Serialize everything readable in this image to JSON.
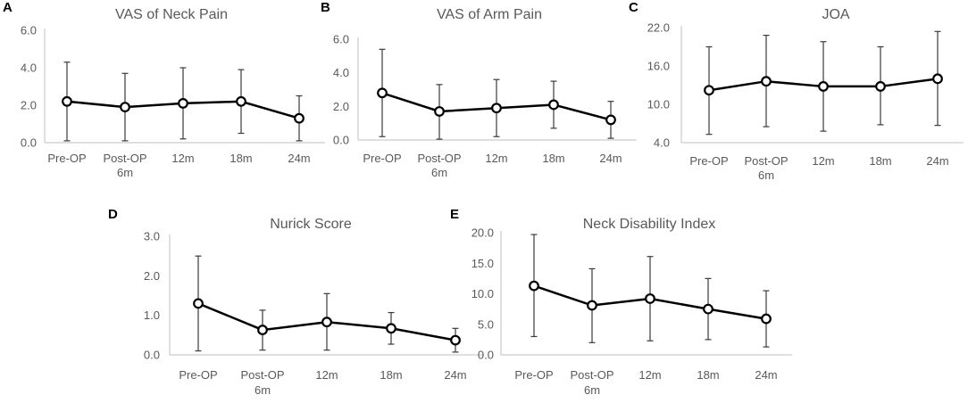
{
  "chart_data": [
    {
      "panel": "A",
      "type": "line",
      "title": "VAS of Neck Pain",
      "categories": [
        "Pre-OP",
        "Post-OP\n6m",
        "12m",
        "18m",
        "24m"
      ],
      "values": [
        2.2,
        1.9,
        2.1,
        2.2,
        1.3
      ],
      "error_low": [
        0.1,
        0.1,
        0.2,
        0.5,
        0.1
      ],
      "error_high": [
        4.3,
        3.7,
        4.0,
        3.9,
        2.5
      ],
      "ylim": [
        0,
        6
      ],
      "yticks": [
        "0.0",
        "2.0",
        "4.0",
        "6.0"
      ],
      "xlabel": "",
      "ylabel": "",
      "grid": false
    },
    {
      "panel": "B",
      "type": "line",
      "title": "VAS of Arm Pain",
      "categories": [
        "Pre-OP",
        "Post-OP\n6m",
        "12m",
        "18m",
        "24m"
      ],
      "values": [
        2.8,
        1.7,
        1.9,
        2.1,
        1.2
      ],
      "error_low": [
        0.2,
        0.05,
        0.2,
        0.7,
        0.1
      ],
      "error_high": [
        5.4,
        3.3,
        3.6,
        3.5,
        2.3
      ],
      "ylim": [
        0,
        6
      ],
      "yticks": [
        "0.0",
        "2.0",
        "4.0",
        "6.0"
      ],
      "xlabel": "",
      "ylabel": "",
      "grid": false
    },
    {
      "panel": "C",
      "type": "line",
      "title": "JOA",
      "categories": [
        "Pre-OP",
        "Post-OP\n6m",
        "12m",
        "18m",
        "24m"
      ],
      "values": [
        12.2,
        13.6,
        12.8,
        12.8,
        14.0
      ],
      "error_low": [
        5.3,
        6.5,
        5.8,
        6.8,
        6.7
      ],
      "error_high": [
        19.0,
        20.8,
        19.8,
        19.0,
        21.4
      ],
      "ylim": [
        4,
        22
      ],
      "yticks": [
        "4.0",
        "10.0",
        "16.0",
        "22.0"
      ],
      "xlabel": "",
      "ylabel": "",
      "grid": false
    },
    {
      "panel": "D",
      "type": "line",
      "title": "Nurick Score",
      "categories": [
        "Pre-OP",
        "Post-OP\n6m",
        "12m",
        "18m",
        "24m"
      ],
      "values": [
        1.3,
        0.63,
        0.83,
        0.67,
        0.37
      ],
      "error_low": [
        0.1,
        0.12,
        0.12,
        0.27,
        0.07
      ],
      "error_high": [
        2.5,
        1.13,
        1.55,
        1.07,
        0.67
      ],
      "ylim": [
        0,
        3
      ],
      "yticks": [
        "0.0",
        "1.0",
        "2.0",
        "3.0"
      ],
      "xlabel": "",
      "ylabel": "",
      "grid": false
    },
    {
      "panel": "E",
      "type": "line",
      "title": "Neck Disability Index",
      "categories": [
        "Pre-OP",
        "Post-OP\n6m",
        "12m",
        "18m",
        "24m"
      ],
      "values": [
        11.3,
        8.1,
        9.2,
        7.5,
        5.9
      ],
      "error_low": [
        3.0,
        2.0,
        2.3,
        2.5,
        1.3
      ],
      "error_high": [
        19.7,
        14.1,
        16.1,
        12.5,
        10.5
      ],
      "ylim": [
        0,
        20
      ],
      "yticks": [
        "0.0",
        "5.0",
        "10.0",
        "15.0",
        "20.0"
      ],
      "xlabel": "",
      "ylabel": "",
      "grid": false
    }
  ],
  "colors": {
    "line": "#000000",
    "marker_fill": "#ffffff",
    "error_bar": "#3a3a3a",
    "axis": "#bfbfbf",
    "text": "#595959",
    "panel_letter": "#000000"
  }
}
